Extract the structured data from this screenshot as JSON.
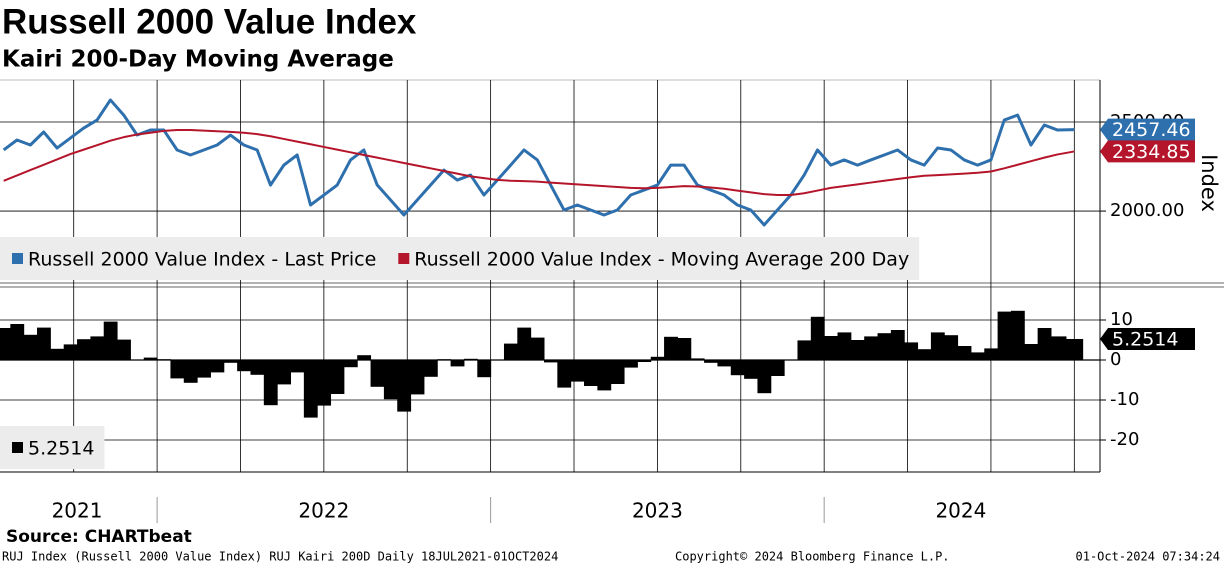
{
  "chart_data": [
    {
      "type": "line",
      "title": "Russell 2000 Value Index",
      "subtitle": "Kairi 200-Day Moving Average",
      "y_label": "Index",
      "xlim": [
        2021.529,
        2024.827
      ],
      "x": [
        2021.54,
        2021.58,
        2021.62,
        2021.66,
        2021.7,
        2021.74,
        2021.78,
        2021.82,
        2021.86,
        2021.9,
        2021.94,
        2021.98,
        2022.02,
        2022.06,
        2022.1,
        2022.14,
        2022.18,
        2022.22,
        2022.26,
        2022.3,
        2022.34,
        2022.38,
        2022.42,
        2022.46,
        2022.5,
        2022.54,
        2022.58,
        2022.62,
        2022.66,
        2022.7,
        2022.74,
        2022.78,
        2022.82,
        2022.86,
        2022.9,
        2022.94,
        2022.98,
        2023.02,
        2023.06,
        2023.1,
        2023.14,
        2023.18,
        2023.22,
        2023.26,
        2023.3,
        2023.34,
        2023.38,
        2023.42,
        2023.46,
        2023.5,
        2023.54,
        2023.58,
        2023.62,
        2023.66,
        2023.7,
        2023.74,
        2023.78,
        2023.82,
        2023.86,
        2023.9,
        2023.94,
        2023.98,
        2024.02,
        2024.06,
        2024.1,
        2024.14,
        2024.18,
        2024.22,
        2024.26,
        2024.3,
        2024.34,
        2024.38,
        2024.42,
        2024.46,
        2024.5,
        2024.54,
        2024.58,
        2024.62,
        2024.66,
        2024.7,
        2024.75
      ],
      "series": [
        {
          "name": "Russell 2000 Value Index - Last Price",
          "color": "#2e6fad",
          "values": [
            2343,
            2399,
            2371,
            2444,
            2354,
            2410,
            2466,
            2511,
            2624,
            2539,
            2427,
            2455,
            2455,
            2343,
            2315,
            2343,
            2371,
            2427,
            2371,
            2343,
            2146,
            2258,
            2315,
            2034,
            2090,
            2146,
            2287,
            2343,
            2146,
            2062,
            1978,
            2062,
            2146,
            2230,
            2174,
            2202,
            2090,
            2174,
            2258,
            2343,
            2287,
            2146,
            2006,
            2034,
            2006,
            1978,
            2006,
            2090,
            2118,
            2146,
            2258,
            2258,
            2146,
            2118,
            2090,
            2034,
            2006,
            1922,
            2006,
            2090,
            2202,
            2343,
            2258,
            2287,
            2258,
            2287,
            2315,
            2343,
            2287,
            2258,
            2354,
            2343,
            2287,
            2258,
            2287,
            2511,
            2539,
            2371,
            2483,
            2455,
            2457.46
          ]
        },
        {
          "name": "Russell 2000 Value Index - Moving Average 200 Day",
          "color": "#b5152b",
          "values": [
            2170,
            2200,
            2230,
            2260,
            2290,
            2320,
            2345,
            2370,
            2395,
            2415,
            2430,
            2440,
            2450,
            2455,
            2455,
            2452,
            2448,
            2445,
            2440,
            2432,
            2420,
            2405,
            2390,
            2375,
            2360,
            2345,
            2330,
            2315,
            2300,
            2285,
            2270,
            2255,
            2240,
            2225,
            2210,
            2195,
            2185,
            2175,
            2170,
            2168,
            2165,
            2160,
            2155,
            2150,
            2145,
            2140,
            2135,
            2130,
            2128,
            2130,
            2135,
            2140,
            2138,
            2132,
            2125,
            2115,
            2105,
            2095,
            2090,
            2090,
            2100,
            2115,
            2130,
            2140,
            2150,
            2160,
            2170,
            2180,
            2190,
            2198,
            2202,
            2206,
            2210,
            2215,
            2222,
            2240,
            2260,
            2280,
            2300,
            2318,
            2334.85
          ]
        }
      ],
      "ylim": [
        1596,
        2736
      ],
      "yticks": [
        {
          "value": 2000,
          "label": "2000.00"
        },
        {
          "value": 2500,
          "label": "2500.00"
        }
      ],
      "grid": true,
      "legend": "lower left"
    },
    {
      "type": "bar",
      "xlim": [
        2021.529,
        2024.827
      ],
      "x": [
        2021.54,
        2021.58,
        2021.62,
        2021.66,
        2021.7,
        2021.74,
        2021.78,
        2021.82,
        2021.86,
        2021.9,
        2021.94,
        2021.98,
        2022.02,
        2022.06,
        2022.1,
        2022.14,
        2022.18,
        2022.22,
        2022.26,
        2022.3,
        2022.34,
        2022.38,
        2022.42,
        2022.46,
        2022.5,
        2022.54,
        2022.58,
        2022.62,
        2022.66,
        2022.7,
        2022.74,
        2022.78,
        2022.82,
        2022.86,
        2022.9,
        2022.94,
        2022.98,
        2023.02,
        2023.06,
        2023.1,
        2023.14,
        2023.18,
        2023.22,
        2023.26,
        2023.3,
        2023.34,
        2023.38,
        2023.42,
        2023.46,
        2023.5,
        2023.54,
        2023.58,
        2023.62,
        2023.66,
        2023.7,
        2023.74,
        2023.78,
        2023.82,
        2023.86,
        2023.9,
        2023.94,
        2023.98,
        2024.02,
        2024.06,
        2024.1,
        2024.14,
        2024.18,
        2024.22,
        2024.26,
        2024.3,
        2024.34,
        2024.38,
        2024.42,
        2024.46,
        2024.5,
        2024.54,
        2024.58,
        2024.62,
        2024.66,
        2024.7,
        2024.75
      ],
      "series": [
        {
          "color": "#000000",
          "values": [
            8.0,
            9.0,
            6.3,
            8.1,
            2.8,
            3.9,
            5.2,
            5.9,
            9.6,
            5.1,
            -0.1,
            0.6,
            0.2,
            -4.6,
            -5.7,
            -4.4,
            -3.1,
            -0.7,
            -2.8,
            -3.7,
            -11.3,
            -6.1,
            -3.1,
            -14.4,
            -11.4,
            -8.5,
            -1.8,
            1.2,
            -6.7,
            -9.8,
            -12.9,
            -8.6,
            -4.2,
            0.2,
            -1.6,
            0.3,
            -4.3,
            0.0,
            4.1,
            8.1,
            5.6,
            -0.6,
            -6.9,
            -5.4,
            -6.5,
            -7.6,
            -6.0,
            -1.9,
            -0.5,
            0.8,
            5.8,
            5.5,
            0.4,
            -0.7,
            -1.6,
            -3.8,
            -4.7,
            -8.3,
            -4.0,
            0.0,
            4.9,
            10.8,
            6.0,
            6.9,
            5.0,
            5.9,
            6.7,
            7.5,
            4.4,
            2.7,
            6.9,
            6.2,
            3.5,
            1.9,
            2.9,
            12.1,
            12.3,
            4.0,
            8.0,
            5.9,
            5.2514
          ]
        }
      ],
      "ylim": [
        -28,
        18.25
      ],
      "yticks": [
        -20,
        -10,
        0,
        10
      ],
      "grid": true,
      "legend": "lower left",
      "xticks": [
        {
          "value": 2021.76,
          "label": "2021"
        },
        {
          "value": 2022.5,
          "label": "2022"
        },
        {
          "value": 2023.5,
          "label": "2023"
        },
        {
          "value": 2024.41,
          "label": "2024"
        }
      ],
      "xgrid": [
        2021.75,
        2022,
        2022.25,
        2022.5,
        2022.75,
        2023,
        2023.25,
        2023.5,
        2023.75,
        2024,
        2024.25,
        2024.5,
        2024.75
      ]
    }
  ],
  "footer": {
    "source": "Source: CHARTbeat",
    "description": "RUJ Index (Russell 2000 Value Index) RUJ Kairi 200D  Daily 18JUL2021-01OCT2024",
    "copyright": "Copyright© 2024 Bloomberg Finance L.P.",
    "timestamp": "01-Oct-2024 07:34:24"
  }
}
